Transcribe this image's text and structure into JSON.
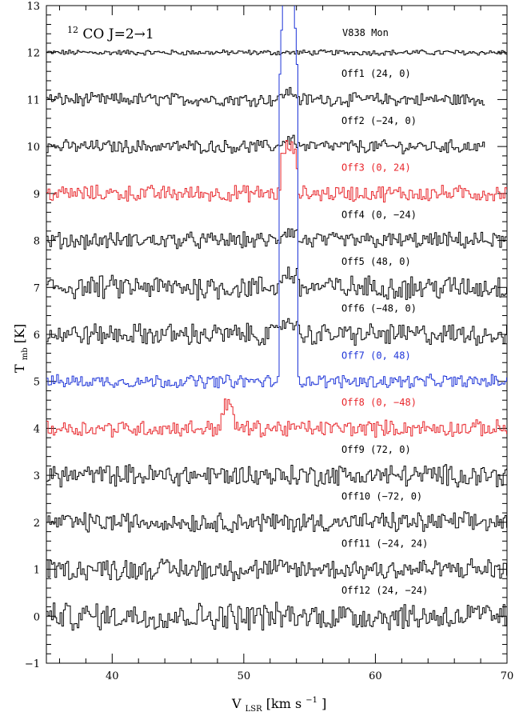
{
  "chart_data": {
    "type": "line",
    "title_parts": {
      "sup": "12",
      "main": "CO J=2→1"
    },
    "source_label": "V838 Mon",
    "xlabel_parts": {
      "v": "V",
      "sub": "LSR",
      "unit": " [km s",
      "exp": "−1",
      "close": "]"
    },
    "ylabel_parts": {
      "t": "T",
      "sub": "mb",
      "unit": " [K]"
    },
    "xlim": [
      35,
      70
    ],
    "ylim": [
      -1,
      13
    ],
    "xticks": [
      40,
      50,
      60,
      70
    ],
    "yticks": [
      -1,
      0,
      1,
      2,
      3,
      4,
      5,
      6,
      7,
      8,
      9,
      10,
      11,
      12,
      13
    ],
    "colors": {
      "black": "#000000",
      "red": "#e8262b",
      "blue": "#1f35d8"
    },
    "series": [
      {
        "name": "V838 Mon",
        "color": "black",
        "baseline": 12.0,
        "noise": 0.05,
        "x_end": 70,
        "lines": [],
        "label": null
      },
      {
        "name": "Off1 (24, 0)",
        "color": "black",
        "baseline": 11.0,
        "noise": 0.12,
        "x_end": 68.3,
        "lines": [
          {
            "x0": 52.7,
            "x1": 54.0,
            "peak": 0.15
          }
        ],
        "label_y": 11.55
      },
      {
        "name": "Off2 (−24, 0)",
        "color": "black",
        "baseline": 10.0,
        "noise": 0.12,
        "x_end": 68.3,
        "lines": [
          {
            "x0": 52.7,
            "x1": 54.0,
            "peak": 0.15
          }
        ],
        "label_y": 10.55
      },
      {
        "name": "Off3 (0, 24)",
        "color": "red",
        "baseline": 9.0,
        "noise": 0.15,
        "x_end": 70,
        "lines": [
          {
            "x0": 52.7,
            "x1": 54.0,
            "peak": 1.0
          }
        ],
        "label_y": 9.55
      },
      {
        "name": "Off4 (0, −24)",
        "color": "black",
        "baseline": 8.0,
        "noise": 0.15,
        "x_end": 70,
        "lines": [
          {
            "x0": 52.7,
            "x1": 54.0,
            "peak": 0.2
          }
        ],
        "label_y": 8.55
      },
      {
        "name": "Off5 (48, 0)",
        "color": "black",
        "baseline": 7.0,
        "noise": 0.22,
        "x_end": 70,
        "lines": [
          {
            "x0": 52.7,
            "x1": 54.0,
            "peak": 0.3
          }
        ],
        "label_y": 7.55
      },
      {
        "name": "Off6 (−48, 0)",
        "color": "black",
        "baseline": 6.0,
        "noise": 0.2,
        "x_end": 70,
        "lines": [
          {
            "x0": 52.7,
            "x1": 54.0,
            "peak": 0.3
          }
        ],
        "label_y": 6.55
      },
      {
        "name": "Off7 (0, 48)",
        "color": "blue",
        "baseline": 5.0,
        "noise": 0.12,
        "x_end": 70,
        "lines": [
          {
            "x0": 52.6,
            "x1": 54.1,
            "peak": 9.0
          }
        ],
        "label_y": 5.55
      },
      {
        "name": "Off8 (0, −48)",
        "color": "red",
        "baseline": 4.0,
        "noise": 0.15,
        "x_end": 70,
        "lines": [
          {
            "x0": 48.2,
            "x1": 49.2,
            "peak": 0.5
          }
        ],
        "label_y": 4.55
      },
      {
        "name": "Off9 (72, 0)",
        "color": "black",
        "baseline": 3.0,
        "noise": 0.2,
        "x_end": 70,
        "lines": [],
        "label_y": 3.55
      },
      {
        "name": "Off10 (−72, 0)",
        "color": "black",
        "baseline": 2.0,
        "noise": 0.18,
        "x_end": 70,
        "lines": [],
        "label_y": 2.55
      },
      {
        "name": "Off11 (−24, 24)",
        "color": "black",
        "baseline": 1.0,
        "noise": 0.2,
        "x_end": 70,
        "lines": [],
        "label_y": 1.55
      },
      {
        "name": "Off12 (24, −24)",
        "color": "black",
        "baseline": 0.0,
        "noise": 0.25,
        "x_end": 70,
        "lines": [],
        "label_y": 0.55
      }
    ]
  }
}
